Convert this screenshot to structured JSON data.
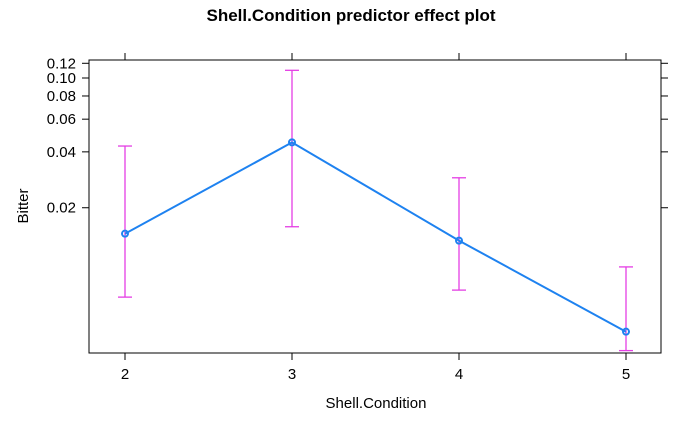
{
  "chart_data": {
    "type": "line",
    "title": "Shell.Condition predictor effect plot",
    "xlabel": "Shell.Condition",
    "ylabel": "Bitter",
    "y_scale": "log",
    "x_categories": [
      "2",
      "3",
      "4",
      "5"
    ],
    "y_ticks": [
      0.02,
      0.04,
      0.06,
      0.08,
      0.1,
      0.12
    ],
    "y_tick_labels": [
      "0.02",
      "0.04",
      "0.06",
      "0.08",
      "0.10",
      "0.12"
    ],
    "ylim": [
      0.0033,
      0.125
    ],
    "grid": false,
    "series": [
      {
        "values": [
          0.0145,
          0.045,
          0.0133,
          0.0043
        ],
        "lower": [
          0.0066,
          0.0158,
          0.0072,
          0.0034
        ],
        "upper": [
          0.043,
          0.11,
          0.029,
          0.0096
        ]
      }
    ],
    "colors": {
      "line": "#1e82f0",
      "error_bars": "#e43ee4"
    }
  }
}
